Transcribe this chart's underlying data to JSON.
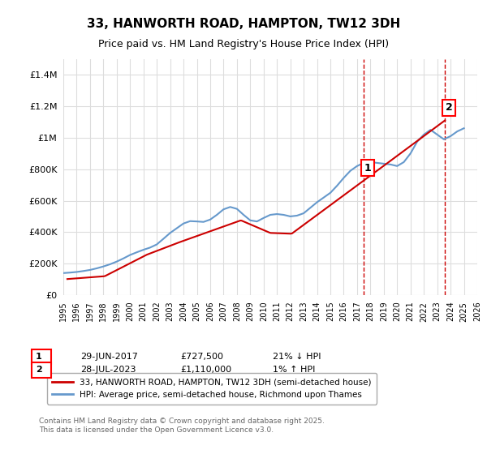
{
  "title": "33, HANWORTH ROAD, HAMPTON, TW12 3DH",
  "subtitle": "Price paid vs. HM Land Registry's House Price Index (HPI)",
  "ylabel_ticks": [
    "£0",
    "£200K",
    "£400K",
    "£600K",
    "£800K",
    "£1M",
    "£1.2M",
    "£1.4M"
  ],
  "ylim": [
    0,
    1500000
  ],
  "xlim_years": [
    1995,
    2026
  ],
  "line_color_red": "#cc0000",
  "line_color_blue": "#6699cc",
  "vline_color": "#cc0000",
  "grid_color": "#dddddd",
  "background_color": "#ffffff",
  "legend_label_red": "33, HANWORTH ROAD, HAMPTON, TW12 3DH (semi-detached house)",
  "legend_label_blue": "HPI: Average price, semi-detached house, Richmond upon Thames",
  "annotation1_label": "1",
  "annotation1_date": "29-JUN-2017",
  "annotation1_price": "£727,500",
  "annotation1_hpi": "21% ↓ HPI",
  "annotation1_year": 2017.5,
  "annotation1_value": 727500,
  "annotation2_label": "2",
  "annotation2_date": "28-JUL-2023",
  "annotation2_price": "£1,110,000",
  "annotation2_hpi": "1% ↑ HPI",
  "annotation2_year": 2023.58,
  "annotation2_value": 1110000,
  "footer": "Contains HM Land Registry data © Crown copyright and database right 2025.\nThis data is licensed under the Open Government Licence v3.0.",
  "hpi_years": [
    1995.0,
    1995.5,
    1996.0,
    1996.5,
    1997.0,
    1997.5,
    1998.0,
    1998.5,
    1999.0,
    1999.5,
    2000.0,
    2000.5,
    2001.0,
    2001.5,
    2002.0,
    2002.5,
    2003.0,
    2003.5,
    2004.0,
    2004.5,
    2005.0,
    2005.5,
    2006.0,
    2006.5,
    2007.0,
    2007.5,
    2008.0,
    2008.5,
    2009.0,
    2009.5,
    2010.0,
    2010.5,
    2011.0,
    2011.5,
    2012.0,
    2012.5,
    2013.0,
    2013.5,
    2014.0,
    2014.5,
    2015.0,
    2015.5,
    2016.0,
    2016.5,
    2017.0,
    2017.5,
    2018.0,
    2018.5,
    2019.0,
    2019.5,
    2020.0,
    2020.5,
    2021.0,
    2021.5,
    2022.0,
    2022.5,
    2023.0,
    2023.5,
    2024.0,
    2024.5,
    2025.0
  ],
  "hpi_values": [
    140000,
    143000,
    147000,
    153000,
    160000,
    170000,
    182000,
    196000,
    213000,
    233000,
    255000,
    272000,
    288000,
    302000,
    322000,
    358000,
    395000,
    425000,
    455000,
    470000,
    468000,
    465000,
    480000,
    510000,
    545000,
    560000,
    548000,
    510000,
    475000,
    468000,
    490000,
    510000,
    515000,
    510000,
    500000,
    505000,
    520000,
    555000,
    590000,
    620000,
    650000,
    695000,
    745000,
    790000,
    820000,
    840000,
    845000,
    840000,
    835000,
    830000,
    820000,
    845000,
    900000,
    975000,
    1020000,
    1050000,
    1020000,
    990000,
    1010000,
    1040000,
    1060000
  ],
  "price_years": [
    1995.3,
    1998.1,
    2001.2,
    2003.5,
    2008.3,
    2010.5,
    2012.1,
    2017.5,
    2023.58
  ],
  "price_values": [
    102000,
    120000,
    255000,
    330000,
    475000,
    395000,
    390000,
    727500,
    1110000
  ]
}
